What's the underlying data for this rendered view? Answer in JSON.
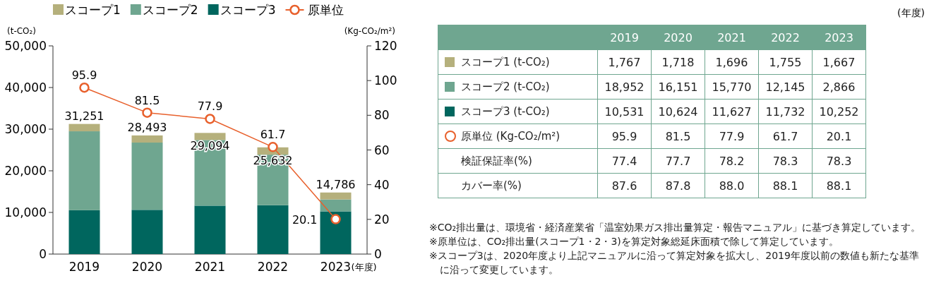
{
  "chart_data": [
    {
      "type": "bar",
      "stacked": true,
      "categories": [
        "2019",
        "2020",
        "2021",
        "2022",
        "2023"
      ],
      "xlabel": "(年度)",
      "ylabel": "(t-CO₂)",
      "y2label": "(Kg-CO₂/m²)",
      "ylim": [
        0,
        50000
      ],
      "yticks": [
        {
          "value": 0,
          "label": "0"
        },
        {
          "value": 10000,
          "label": "10,000"
        },
        {
          "value": 20000,
          "label": "20,000"
        },
        {
          "value": 30000,
          "label": "30,000"
        },
        {
          "value": 40000,
          "label": "40,000"
        },
        {
          "value": 50000,
          "label": "50,000"
        }
      ],
      "y2lim": [
        0,
        120
      ],
      "y2ticks": [
        0,
        20,
        40,
        60,
        80,
        100,
        120
      ],
      "series": [
        {
          "name": "スコープ3",
          "color": "#00665e",
          "values": [
            10531,
            10624,
            11627,
            11732,
            10252
          ]
        },
        {
          "name": "スコープ2",
          "color": "#6fa690",
          "values": [
            18952,
            16151,
            15770,
            12145,
            2866
          ]
        },
        {
          "name": "スコープ1",
          "color": "#b5b07c",
          "values": [
            1767,
            1718,
            1696,
            1755,
            1667
          ]
        },
        {
          "name": "原単位",
          "type": "line",
          "axis": "y2",
          "color": "#e8602c",
          "marker": "circle",
          "values": [
            95.9,
            81.5,
            77.9,
            61.7,
            20.1
          ],
          "value_labels": [
            "95.9",
            "81.5",
            "77.9",
            "61.7",
            "20.1"
          ]
        }
      ],
      "totals": [
        "31,251",
        "28,493",
        "29,094",
        "25,632",
        "14,786"
      ],
      "legend": "top left",
      "grid": false
    },
    {
      "type": "heatmap",
      "categories": [
        "2019",
        "2020",
        "2021",
        "2022",
        "2023"
      ],
      "y_categories": [
        "スコープ1 (t-CO₂)",
        "スコープ2 (t-CO₂)",
        "スコープ3 (t-CO₂)",
        "原単位 (Kg-CO₂/m²)",
        "検証保証率(%)",
        "カバー率(%)"
      ],
      "cells": [
        [
          1767,
          1718,
          1696,
          1755,
          1667
        ],
        [
          18952,
          16151,
          15770,
          12145,
          2866
        ],
        [
          10531,
          10624,
          11627,
          11732,
          10252
        ],
        [
          95.9,
          81.5,
          77.9,
          61.7,
          20.1
        ],
        [
          77.4,
          77.7,
          78.2,
          78.3,
          78.3
        ],
        [
          87.6,
          87.8,
          88.0,
          88.1,
          88.1
        ]
      ],
      "cell_labels": [
        [
          "1,767",
          "1,718",
          "1,696",
          "1,755",
          "1,667"
        ],
        [
          "18,952",
          "16,151",
          "15,770",
          "12,145",
          "2,866"
        ],
        [
          "10,531",
          "10,624",
          "11,627",
          "11,732",
          "10,252"
        ],
        [
          "95.9",
          "81.5",
          "77.9",
          "61.7",
          "20.1"
        ],
        [
          "77.4",
          "77.7",
          "78.2",
          "78.3",
          "78.3"
        ],
        [
          "87.6",
          "87.8",
          "88.0",
          "88.1",
          "88.1"
        ]
      ],
      "annotations": [
        "(年度)",
        "※CO₂排出量は、環境省・経済産業省「温室効果ガス排出量算定・報告マニュアル」に基づき算定しています。",
        "※原単位は、CO₂排出量(スコープ1・2・3)を算定対象総延床面積で除して算定しています。",
        "※スコープ3は、2020年度より上記マニュアルに沿って算定対象を拡大し、2019年度以前の数値も新たな基準に沿って変更しています。"
      ]
    }
  ]
}
